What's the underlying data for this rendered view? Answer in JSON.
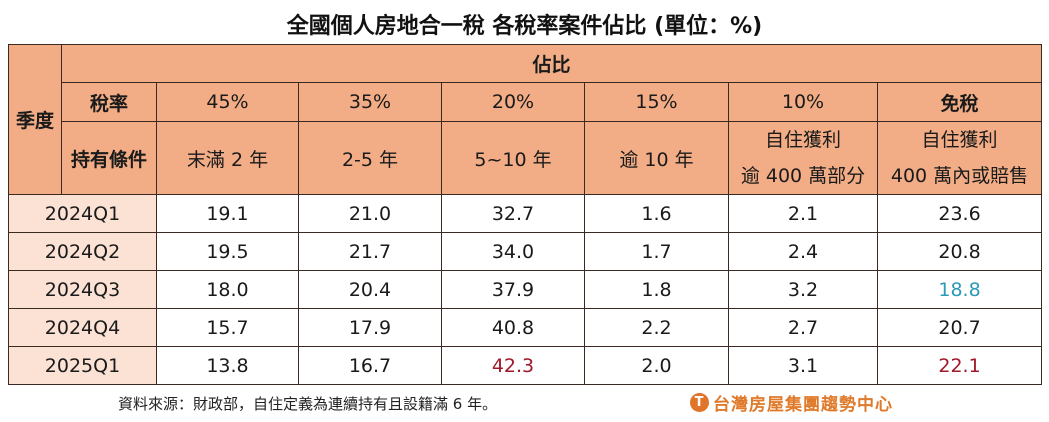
{
  "title": "全國個人房地合一稅  各稅率案件佔比 (單位：%)",
  "header": {
    "quarter_label": "季度",
    "group_label": "佔比",
    "rate_label": "稅率",
    "condition_label": "持有條件",
    "columns": [
      {
        "rate": "45%",
        "condition": [
          "末滿 2 年"
        ]
      },
      {
        "rate": "35%",
        "condition": [
          "2-5 年"
        ]
      },
      {
        "rate": "20%",
        "condition": [
          "5~10 年"
        ]
      },
      {
        "rate": "15%",
        "condition": [
          "逾 10 年"
        ]
      },
      {
        "rate": "10%",
        "condition": [
          "自住獲利",
          "逾 400 萬部分"
        ]
      },
      {
        "rate": "免稅",
        "condition": [
          "自住獲利",
          "400 萬內或賠售"
        ]
      }
    ]
  },
  "rows": [
    {
      "quarter": "2024Q1",
      "values": [
        "19.1",
        "21.0",
        "32.7",
        "1.6",
        "2.1",
        "23.6"
      ]
    },
    {
      "quarter": "2024Q2",
      "values": [
        "19.5",
        "21.7",
        "34.0",
        "1.7",
        "2.4",
        "20.8"
      ]
    },
    {
      "quarter": "2024Q3",
      "values": [
        "18.0",
        "20.4",
        "37.9",
        "1.8",
        "3.2",
        "18.8"
      ]
    },
    {
      "quarter": "2024Q4",
      "values": [
        "15.7",
        "17.9",
        "40.8",
        "2.2",
        "2.7",
        "20.7"
      ]
    },
    {
      "quarter": "2025Q1",
      "values": [
        "13.8",
        "16.7",
        "42.3",
        "2.0",
        "3.1",
        "22.1"
      ]
    }
  ],
  "highlights": {
    "red": "#a0182a",
    "blue": "#2b9bb5",
    "cells": [
      {
        "row": 4,
        "col": 2,
        "color": "red"
      },
      {
        "row": 4,
        "col": 5,
        "color": "red"
      },
      {
        "row": 2,
        "col": 5,
        "color": "blue"
      }
    ]
  },
  "colors": {
    "header_bg": "#f2ad86",
    "quarter_bg": "#fbe2d5",
    "border": "#3a2a22"
  },
  "footer": {
    "source": "資料來源：財政部，自住定義為連續持有且設籍滿 6 年。",
    "logo_text": "台灣房屋集團趨勢中心",
    "logo_icon": "T"
  },
  "chart_data": {
    "type": "table",
    "title": "全國個人房地合一稅  各稅率案件佔比 (單位：%)",
    "columns": [
      "季度",
      "45% 末滿2年",
      "35% 2-5年",
      "20% 5~10年",
      "15% 逾10年",
      "10% 自住獲利逾400萬部分",
      "免稅 自住獲利400萬內或賠售"
    ],
    "categories": [
      "2024Q1",
      "2024Q2",
      "2024Q3",
      "2024Q4",
      "2025Q1"
    ],
    "series": [
      {
        "name": "45% (末滿 2 年)",
        "values": [
          19.1,
          19.5,
          18.0,
          15.7,
          13.8
        ]
      },
      {
        "name": "35% (2-5 年)",
        "values": [
          21.0,
          21.7,
          20.4,
          17.9,
          16.7
        ]
      },
      {
        "name": "20% (5~10 年)",
        "values": [
          32.7,
          34.0,
          37.9,
          40.8,
          42.3
        ]
      },
      {
        "name": "15% (逾 10 年)",
        "values": [
          1.6,
          1.7,
          1.8,
          2.2,
          2.0
        ]
      },
      {
        "name": "10% (自住獲利 逾 400 萬部分)",
        "values": [
          2.1,
          2.4,
          3.2,
          2.7,
          3.1
        ]
      },
      {
        "name": "免稅 (自住獲利 400 萬內或賠售)",
        "values": [
          23.6,
          20.8,
          18.8,
          20.7,
          22.1
        ]
      }
    ],
    "unit": "%",
    "source": "資料來源：財政部，自住定義為連續持有且設籍滿 6 年。"
  }
}
